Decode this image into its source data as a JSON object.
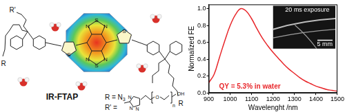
{
  "chart_data": {
    "type": "line",
    "x": [
      900,
      925,
      950,
      975,
      1000,
      1025,
      1050,
      1075,
      1100,
      1125,
      1150,
      1175,
      1200,
      1225,
      1250,
      1275,
      1300,
      1325,
      1350,
      1375,
      1400,
      1425,
      1450,
      1475,
      1500
    ],
    "values": [
      0.12,
      0.22,
      0.42,
      0.62,
      0.8,
      0.93,
      1.0,
      0.97,
      0.88,
      0.76,
      0.65,
      0.56,
      0.48,
      0.41,
      0.34,
      0.28,
      0.23,
      0.18,
      0.14,
      0.11,
      0.08,
      0.06,
      0.04,
      0.03,
      0.02
    ],
    "color": "#e8262a",
    "xlabel": "Wavelenght /nm",
    "ylabel": "Normalized FE",
    "xlim": [
      900,
      1500
    ],
    "xticks": [
      900,
      1000,
      1100,
      1200,
      1300,
      1400,
      1500
    ],
    "ylim": [
      0,
      1.05
    ],
    "yticks": [
      {
        "value": 0,
        "label": "0.0"
      },
      {
        "value": 0.2,
        "label": "0.2"
      },
      {
        "value": 0.4,
        "label": "0.4"
      },
      {
        "value": 0.6,
        "label": "0.6"
      },
      {
        "value": 0.8,
        "label": "0.8"
      },
      {
        "value": 1.0,
        "label": "1.0"
      }
    ],
    "grid": false,
    "annotations": [
      "QY = 5.3% in water"
    ],
    "inset": {
      "caption": "20 ms exposure",
      "scale_bar": "5 mm"
    }
  },
  "molecule": {
    "name": "IR-FTAP",
    "substituent_labels": [
      "R'",
      "R",
      "R"
    ],
    "thiophene_atoms": [
      "S",
      "S"
    ],
    "core_atoms": [
      "N",
      "S",
      "N",
      "N",
      "S",
      "N"
    ],
    "r_definition": {
      "text": "R = N",
      "subscript": "3"
    },
    "r_prime_definition": {
      "text": "R' =",
      "triazole_atoms": [
        "N",
        "N",
        "N"
      ],
      "chain_atoms": [
        "O",
        "OH"
      ],
      "repeat": "n"
    }
  }
}
